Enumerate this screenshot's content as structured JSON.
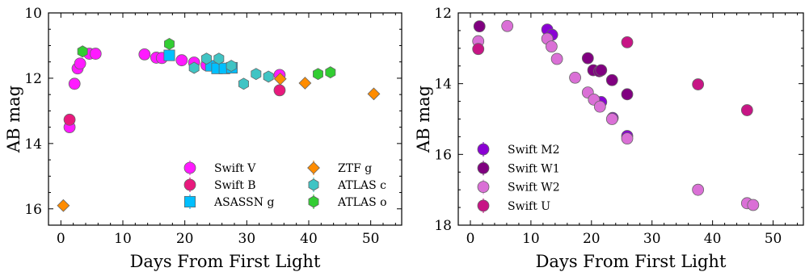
{
  "chart_data": [
    {
      "type": "scatter",
      "xlabel": "Days From First Light",
      "ylabel": "AB mag",
      "xlim": [
        -2,
        55
      ],
      "ylim": [
        10,
        16.5
      ],
      "y_inverted": true,
      "xticks": [
        "0",
        "10",
        "20",
        "30",
        "40",
        "50"
      ],
      "yticks": [
        "10",
        "12",
        "14",
        "16"
      ],
      "legend_position": "bottom-right",
      "legend_columns": 2,
      "series": [
        {
          "name": "Swift V",
          "marker": "circle",
          "color": "#ff1aff",
          "points": [
            [
              1.4,
              13.5
            ],
            [
              2.2,
              12.17
            ],
            [
              2.7,
              11.7
            ],
            [
              3.1,
              11.55
            ],
            [
              4.6,
              11.25
            ],
            [
              5.6,
              11.25
            ],
            [
              13.5,
              11.27
            ],
            [
              15.4,
              11.37
            ],
            [
              16.3,
              11.38
            ],
            [
              19.5,
              11.45
            ],
            [
              21.5,
              11.52
            ],
            [
              23.5,
              11.6
            ],
            [
              35.3,
              11.9
            ]
          ]
        },
        {
          "name": "Swift B",
          "marker": "circle",
          "color": "#e8197d",
          "points": [
            [
              1.4,
              13.27
            ],
            [
              35.3,
              12.37
            ]
          ]
        },
        {
          "name": "ASASSN g",
          "marker": "square",
          "color": "#00bfff",
          "points": [
            [
              17.5,
              11.3
            ],
            [
              24.2,
              11.62
            ],
            [
              25.2,
              11.7
            ],
            [
              26.4,
              11.7
            ],
            [
              27.6,
              11.68
            ]
          ]
        },
        {
          "name": "ZTF g",
          "marker": "diamond",
          "color": "#ff8c00",
          "points": [
            [
              0.4,
              15.9
            ],
            [
              35.4,
              12.02
            ],
            [
              39.4,
              12.15
            ],
            [
              50.5,
              12.48
            ]
          ]
        },
        {
          "name": "ATLAS c",
          "marker": "hexagon",
          "color": "#40c4c4",
          "points": [
            [
              21.5,
              11.68
            ],
            [
              23.5,
              11.4
            ],
            [
              25.5,
              11.4
            ],
            [
              27.5,
              11.62
            ],
            [
              29.5,
              12.17
            ],
            [
              31.5,
              11.87
            ],
            [
              33.5,
              11.95
            ]
          ]
        },
        {
          "name": "ATLAS o",
          "marker": "hexagon",
          "color": "#32cd32",
          "points": [
            [
              3.5,
              11.18
            ],
            [
              17.5,
              10.95
            ],
            [
              41.5,
              11.87
            ],
            [
              43.5,
              11.82
            ]
          ]
        }
      ]
    },
    {
      "type": "scatter",
      "xlabel": "Days From First Light",
      "ylabel": "AB mag",
      "xlim": [
        -2,
        55
      ],
      "ylim": [
        12,
        18
      ],
      "y_inverted": true,
      "xticks": [
        "0",
        "10",
        "20",
        "30",
        "40",
        "50"
      ],
      "yticks": [
        "12",
        "14",
        "16",
        "18"
      ],
      "legend_position": "bottom-left",
      "legend_columns": 1,
      "series": [
        {
          "name": "Swift M2",
          "marker": "circle",
          "color": "#8a00d4",
          "points": [
            [
              12.7,
              12.47
            ],
            [
              13.5,
              12.62
            ],
            [
              21.6,
              14.52
            ],
            [
              23.5,
              14.97
            ],
            [
              25.9,
              15.48
            ]
          ]
        },
        {
          "name": "Swift W1",
          "marker": "circle",
          "color": "#800080",
          "points": [
            [
              1.5,
              12.38
            ],
            [
              19.4,
              13.28
            ],
            [
              20.3,
              13.62
            ],
            [
              21.3,
              13.65
            ],
            [
              21.6,
              13.62
            ],
            [
              23.4,
              13.9
            ],
            [
              25.9,
              14.3
            ]
          ]
        },
        {
          "name": "Swift W2",
          "marker": "circle",
          "color": "#da70d6",
          "points": [
            [
              1.3,
              12.8
            ],
            [
              6.1,
              12.37
            ],
            [
              12.7,
              12.73
            ],
            [
              13.4,
              12.95
            ],
            [
              14.3,
              13.3
            ],
            [
              17.3,
              13.83
            ],
            [
              19.4,
              14.25
            ],
            [
              20.4,
              14.45
            ],
            [
              21.4,
              14.65
            ],
            [
              23.4,
              15.0
            ],
            [
              25.9,
              15.55
            ],
            [
              37.6,
              17.0
            ],
            [
              45.7,
              17.38
            ],
            [
              46.7,
              17.43
            ]
          ]
        },
        {
          "name": "Swift U",
          "marker": "circle",
          "color": "#c71585",
          "points": [
            [
              1.3,
              13.02
            ],
            [
              25.9,
              12.83
            ],
            [
              37.6,
              14.02
            ],
            [
              45.7,
              14.75
            ]
          ]
        }
      ]
    }
  ]
}
